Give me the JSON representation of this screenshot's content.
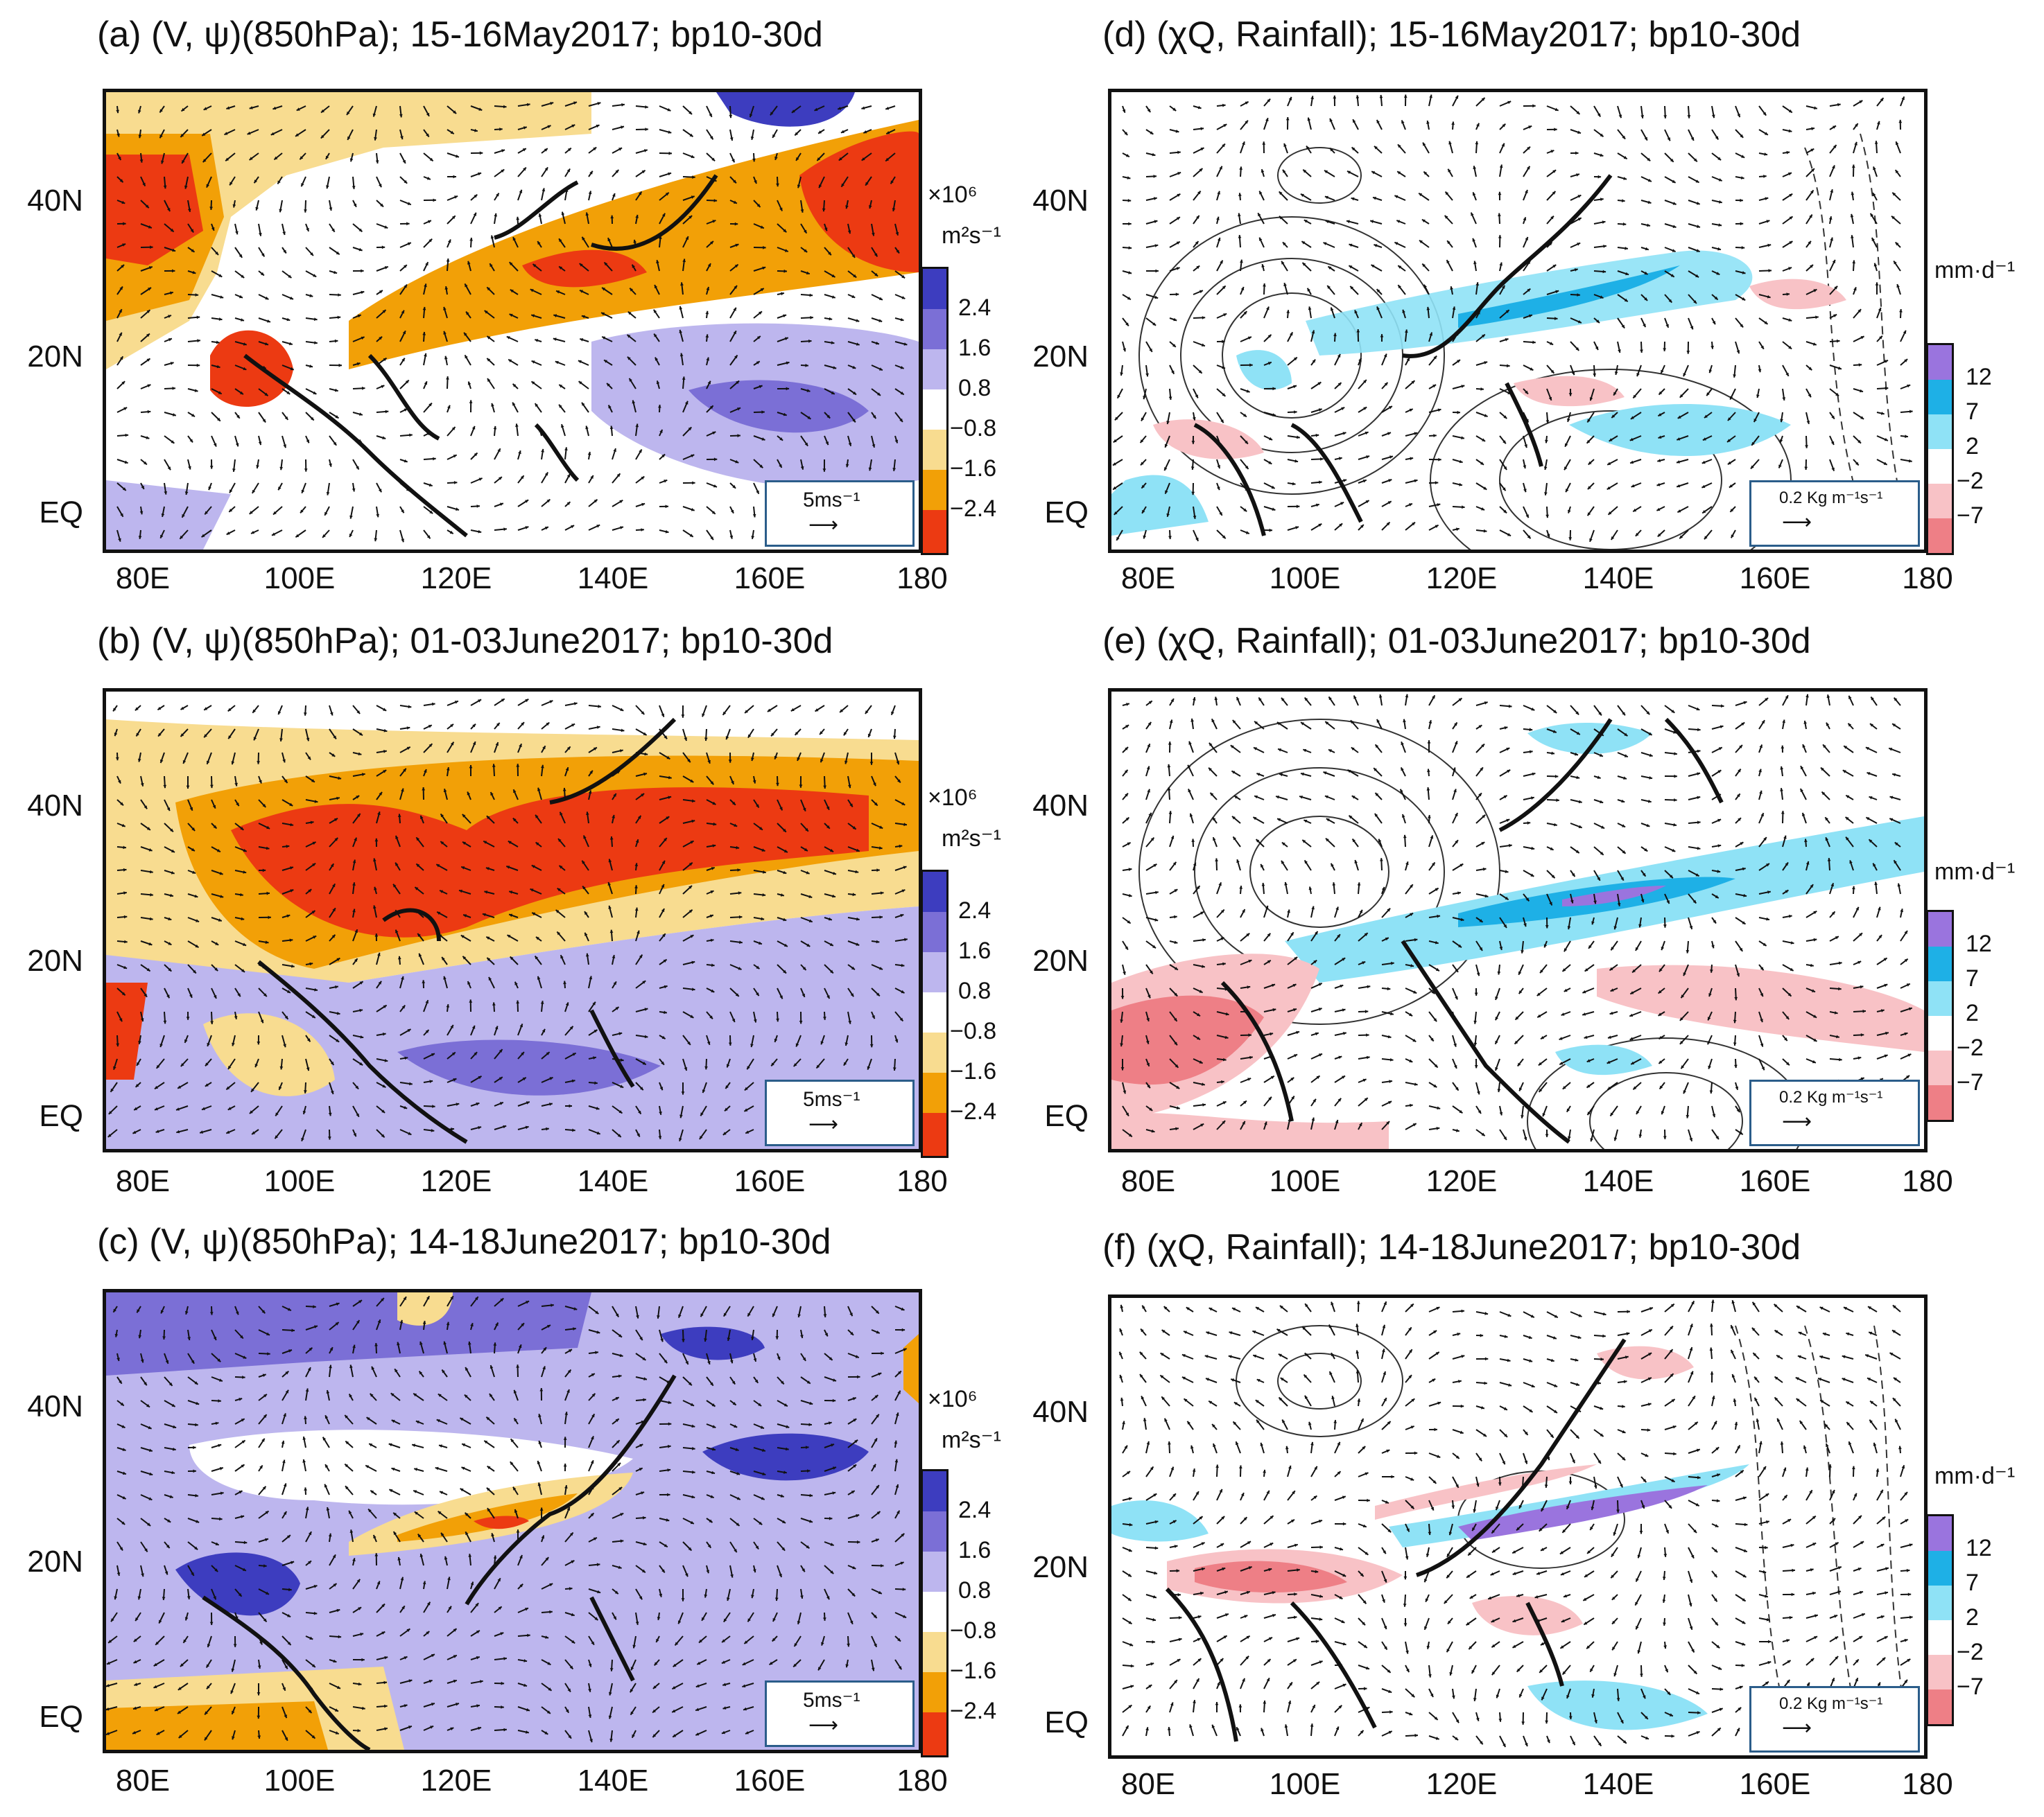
{
  "figure": {
    "xaxis_ticks": [
      "80E",
      "100E",
      "120E",
      "140E",
      "160E",
      "180"
    ],
    "yaxis_ticks": [
      "40N",
      "20N",
      "EQ"
    ]
  },
  "panels": [
    {
      "id": "a",
      "title": "(a) (V, ψ)(850hPa); 15-16May2017; bp10-30d",
      "ref_vector": "5ms⁻¹"
    },
    {
      "id": "b",
      "title": "(b) (V, ψ)(850hPa); 01-03June2017; bp10-30d",
      "ref_vector": "5ms⁻¹"
    },
    {
      "id": "c",
      "title": "(c) (V, ψ)(850hPa); 14-18June2017; bp10-30d",
      "ref_vector": "5ms⁻¹"
    },
    {
      "id": "d",
      "title": "(d) (χQ, Rainfall); 15-16May2017; bp10-30d",
      "ref_vector": "0.2 Kg m⁻¹s⁻¹"
    },
    {
      "id": "e",
      "title": "(e) (χQ, Rainfall); 01-03June2017; bp10-30d",
      "ref_vector": "0.2 Kg m⁻¹s⁻¹"
    },
    {
      "id": "f",
      "title": "(f) (χQ, Rainfall); 14-18June2017; bp10-30d",
      "ref_vector": "0.2 Kg m⁻¹s⁻¹"
    }
  ],
  "colorbar_psi": {
    "unit_line1": "×10⁶",
    "unit_line2": "m²s⁻¹",
    "labels": [
      "2.4",
      "1.6",
      "0.8",
      "−0.8",
      "−1.6",
      "−2.4"
    ],
    "colors": [
      "#3d3dbf",
      "#7b6fd6",
      "#bdb6ee",
      "#ffffff",
      "#f8dc90",
      "#f2a007",
      "#ec3a12"
    ]
  },
  "colorbar_rain": {
    "unit": "mm·d⁻¹",
    "labels": [
      "12",
      "7",
      "2",
      "−2",
      "−7"
    ],
    "colors": [
      "#9a74de",
      "#1eb0e6",
      "#8fe2f6",
      "#ffffff",
      "#f8c2c6",
      "#ee7f86"
    ]
  }
}
